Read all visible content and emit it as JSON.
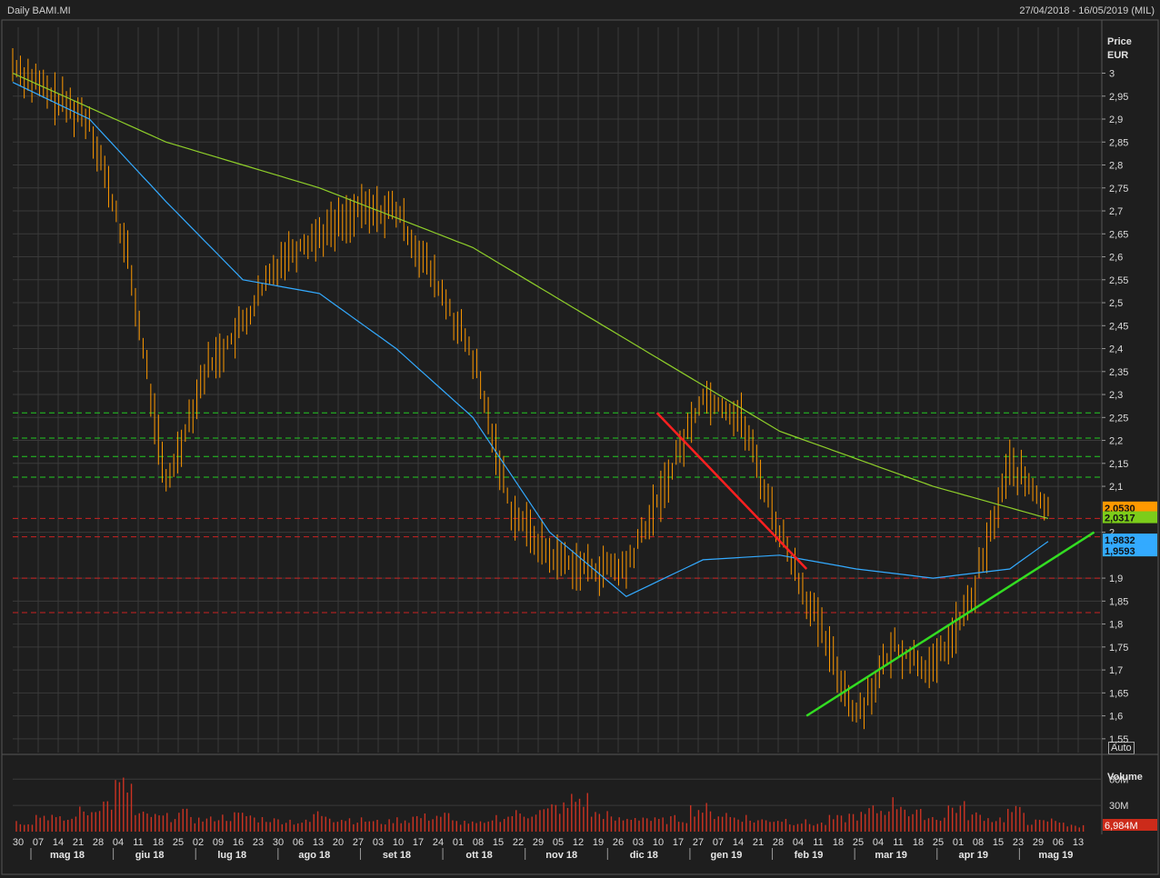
{
  "header": {
    "title": "Daily BAMI.MI",
    "date_range": "27/04/2018 - 16/05/2019 (MIL)"
  },
  "price_axis": {
    "label": "Price",
    "unit": "EUR",
    "scale_label": "Auto",
    "ticks": [
      "3",
      "2,95",
      "2,9",
      "2,85",
      "2,8",
      "2,75",
      "2,7",
      "2,65",
      "2,6",
      "2,55",
      "2,5",
      "2,45",
      "2,4",
      "2,35",
      "2,3",
      "2,25",
      "2,2",
      "2,15",
      "2,1",
      "2",
      "1,9",
      "1,85",
      "1,8",
      "1,75",
      "1,7",
      "1,65",
      "1,6",
      "1,55"
    ]
  },
  "volume_axis": {
    "label": "Volume",
    "ticks": [
      "60M",
      "30M"
    ],
    "last_label": "6,984M"
  },
  "value_labels": [
    {
      "text": "2,0530",
      "color": "#ff9900",
      "value": 2.053
    },
    {
      "text": "2,0317",
      "color": "#7ccd1a",
      "value": 2.0317
    },
    {
      "text": "1,9832",
      "color": "#33aaff",
      "value": 1.9832
    },
    {
      "text": "1,9593",
      "color": "#33aaff",
      "value": 1.9593
    }
  ],
  "x_axis": {
    "day_ticks": [
      "30",
      "07",
      "14",
      "21",
      "28",
      "04",
      "11",
      "18",
      "25",
      "02",
      "09",
      "16",
      "23",
      "30",
      "06",
      "13",
      "20",
      "27",
      "03",
      "10",
      "17",
      "24",
      "01",
      "08",
      "15",
      "22",
      "29",
      "05",
      "12",
      "19",
      "26",
      "03",
      "10",
      "17",
      "27",
      "07",
      "14",
      "21",
      "28",
      "04",
      "11",
      "18",
      "25",
      "04",
      "11",
      "18",
      "25",
      "01",
      "08",
      "15",
      "23",
      "29",
      "06",
      "13"
    ],
    "month_labels": [
      "mag 18",
      "giu 18",
      "lug 18",
      "ago 18",
      "set 18",
      "ott 18",
      "nov 18",
      "dic 18",
      "gen 19",
      "feb 19",
      "mar 19",
      "apr 19",
      "mag 19"
    ]
  },
  "colors": {
    "background": "#1e1e1e",
    "grid": "#3a3a3a",
    "bars": "#ff9900",
    "ma_short": "#33aaff",
    "ma_long": "#8fcf2a",
    "support_dash": "#22cc22",
    "resistance_dash": "#cc2222",
    "trend_down": "#ff2020",
    "trend_up": "#33dd22",
    "volume": "#cc3322"
  },
  "chart_data": {
    "type": "line",
    "title": "Daily BAMI.MI",
    "ylabel": "Price EUR",
    "ylim": [
      1.52,
      3.1
    ],
    "grid": true,
    "series": [
      {
        "kind": "price_bars",
        "x": [
          0,
          10,
          20,
          30,
          40,
          50,
          60,
          70,
          80,
          90,
          100,
          110,
          120,
          130,
          140,
          150,
          160,
          170,
          180,
          190,
          200,
          210,
          220,
          230,
          240,
          250,
          260,
          270
        ],
        "values": [
          3.02,
          2.95,
          2.9,
          2.6,
          2.1,
          2.35,
          2.45,
          2.6,
          2.65,
          2.7,
          2.7,
          2.55,
          2.38,
          2.05,
          1.95,
          1.92,
          1.92,
          2.1,
          2.3,
          2.25,
          2.0,
          1.8,
          1.6,
          1.75,
          1.7,
          1.85,
          2.15,
          2.05
        ]
      },
      {
        "kind": "moving_average_short",
        "x": [
          0,
          20,
          40,
          60,
          80,
          100,
          120,
          140,
          160,
          180,
          200,
          220,
          240,
          260,
          270
        ],
        "values": [
          2.98,
          2.9,
          2.72,
          2.55,
          2.52,
          2.4,
          2.25,
          2.0,
          1.86,
          1.94,
          1.95,
          1.92,
          1.9,
          1.92,
          1.98
        ]
      },
      {
        "kind": "moving_average_long",
        "x": [
          0,
          40,
          80,
          120,
          160,
          200,
          240,
          270
        ],
        "values": [
          3.0,
          2.85,
          2.75,
          2.62,
          2.42,
          2.22,
          2.1,
          2.03
        ]
      }
    ],
    "horizontal_lines": [
      {
        "style": "green-dash",
        "y": 2.26
      },
      {
        "style": "green-dash",
        "y": 2.205
      },
      {
        "style": "green-dash",
        "y": 2.165
      },
      {
        "style": "green-dash",
        "y": 2.12
      },
      {
        "style": "red-dash",
        "y": 2.03
      },
      {
        "style": "red-dash",
        "y": 1.99
      },
      {
        "style": "red-dash",
        "y": 1.9
      },
      {
        "style": "red-dash",
        "y": 1.825
      }
    ],
    "trendlines": [
      {
        "color": "red",
        "from": {
          "x": 168,
          "y": 2.26
        },
        "to": {
          "x": 207,
          "y": 1.92
        }
      },
      {
        "color": "green",
        "from": {
          "x": 207,
          "y": 1.6
        },
        "to": {
          "x": 282,
          "y": 2.0
        }
      }
    ],
    "volume": [
      12,
      20,
      15,
      25,
      35,
      55,
      20,
      18,
      22,
      15,
      18,
      20,
      16,
      14,
      12,
      22,
      16,
      14,
      12,
      15,
      18,
      20,
      12,
      10,
      18,
      22,
      25,
      30,
      40,
      22,
      15,
      18,
      14,
      16,
      28,
      22,
      18,
      14,
      15,
      12,
      10,
      16,
      20,
      26,
      35,
      22,
      18,
      30,
      20,
      16,
      25,
      12,
      14,
      7
    ]
  }
}
